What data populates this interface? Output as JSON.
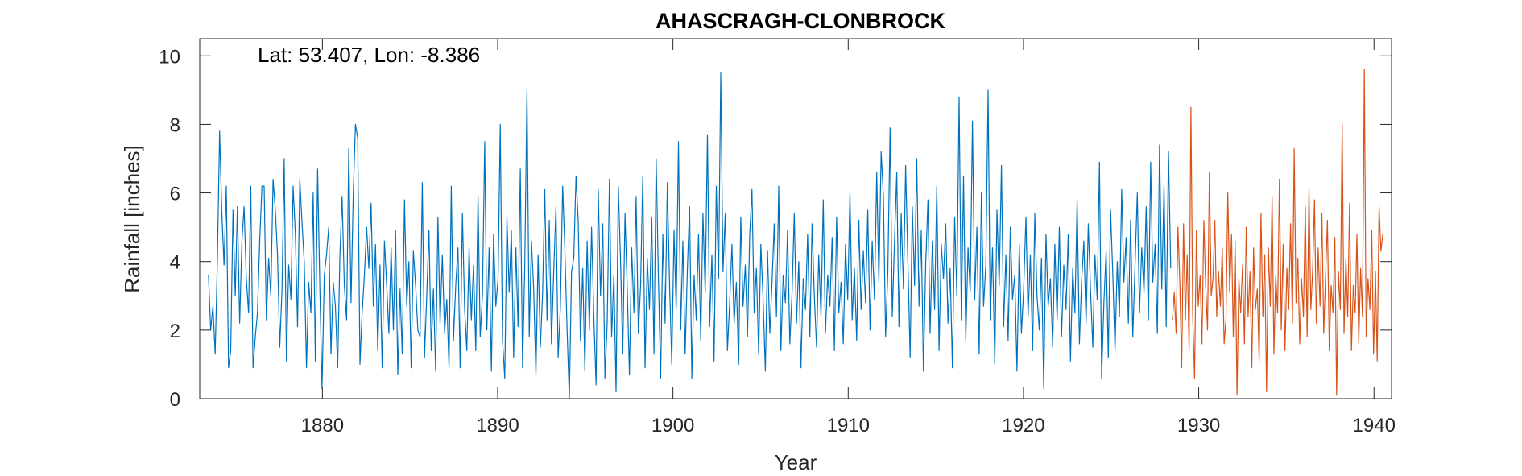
{
  "chart_data": {
    "type": "line",
    "title": "AHASCRAGH-CLONBROCK",
    "annotation": "Lat: 53.407, Lon: -8.386",
    "xlabel": "Year",
    "ylabel": "Rainfall [inches]",
    "xlim": [
      1873,
      1941
    ],
    "ylim": [
      0,
      10.5
    ],
    "xticks": [
      1880,
      1890,
      1900,
      1910,
      1920,
      1930,
      1940
    ],
    "yticks": [
      0,
      2,
      4,
      6,
      8,
      10
    ],
    "grid": false,
    "series": [
      {
        "color": "#0072BD",
        "sampling": "monthly",
        "x_start": 1873.5,
        "x_end": 1928.4,
        "values": [
          3.6,
          2.0,
          2.7,
          1.3,
          4.0,
          7.8,
          5.4,
          3.9,
          6.2,
          0.9,
          1.4,
          5.5,
          3.0,
          5.6,
          2.2,
          4.6,
          5.6,
          3.5,
          2.5,
          6.2,
          0.9,
          1.8,
          2.5,
          4.6,
          6.2,
          6.2,
          2.3,
          4.1,
          3.0,
          6.4,
          5.5,
          4.2,
          1.5,
          3.2,
          7.0,
          1.1,
          3.9,
          2.9,
          6.2,
          4.8,
          2.1,
          6.4,
          5.1,
          4.0,
          0.9,
          3.4,
          2.5,
          6.0,
          1.1,
          6.7,
          3.2,
          0.3,
          3.6,
          4.2,
          5.0,
          1.3,
          3.4,
          2.7,
          0.9,
          4.2,
          5.9,
          3.3,
          2.3,
          7.3,
          2.8,
          6.0,
          8.0,
          7.6,
          1.0,
          2.5,
          3.6,
          5.0,
          3.8,
          5.7,
          2.7,
          4.5,
          1.4,
          3.9,
          0.9,
          4.6,
          3.3,
          1.9,
          4.4,
          2.0,
          4.9,
          0.7,
          3.2,
          1.3,
          5.8,
          2.7,
          4.0,
          0.9,
          4.3,
          3.3,
          2.0,
          1.8,
          6.3,
          1.2,
          3.0,
          4.9,
          1.4,
          3.2,
          0.8,
          5.3,
          2.2,
          4.2,
          1.9,
          2.9,
          0.9,
          6.2,
          1.7,
          3.3,
          4.4,
          0.9,
          5.4,
          2.6,
          1.4,
          4.4,
          2.3,
          3.9,
          1.4,
          5.9,
          1.8,
          3.0,
          7.5,
          2.0,
          4.4,
          0.8,
          4.8,
          2.7,
          3.5,
          8.0,
          1.7,
          0.6,
          5.3,
          3.1,
          4.9,
          1.2,
          4.4,
          2.1,
          6.7,
          0.9,
          3.8,
          9.0,
          1.8,
          4.6,
          3.2,
          0.7,
          4.2,
          1.5,
          3.1,
          6.1,
          2.3,
          5.2,
          1.6,
          3.7,
          5.6,
          1.2,
          2.7,
          6.2,
          4.4,
          2.0,
          0.0,
          3.7,
          4.1,
          6.5,
          5.2,
          1.7,
          3.8,
          0.8,
          4.6,
          2.0,
          5.0,
          2.4,
          0.4,
          6.1,
          3.0,
          5.1,
          0.6,
          2.2,
          6.4,
          1.8,
          3.6,
          0.2,
          6.2,
          4.0,
          1.3,
          5.4,
          3.2,
          0.7,
          4.4,
          2.5,
          5.9,
          1.9,
          3.3,
          6.5,
          0.9,
          4.1,
          2.6,
          5.3,
          1.3,
          7.0,
          3.5,
          0.6,
          4.8,
          2.2,
          6.3,
          3.4,
          1.0,
          4.9,
          2.6,
          7.5,
          2.0,
          4.6,
          1.3,
          3.8,
          5.6,
          0.6,
          3.6,
          2.3,
          4.8,
          1.7,
          5.4,
          3.1,
          7.7,
          2.1,
          4.2,
          1.1,
          6.2,
          3.5,
          9.5,
          3.7,
          5.4,
          1.4,
          2.8,
          4.5,
          2.2,
          3.4,
          1.0,
          5.3,
          2.7,
          3.9,
          1.8,
          4.8,
          6.1,
          2.5,
          3.8,
          1.3,
          4.5,
          2.9,
          0.8,
          4.3,
          1.9,
          3.4,
          5.1,
          2.4,
          6.2,
          1.4,
          3.6,
          2.8,
          4.9,
          1.6,
          3.1,
          5.4,
          2.2,
          4.0,
          0.9,
          3.5,
          2.6,
          4.8,
          1.8,
          5.1,
          3.0,
          1.5,
          4.2,
          2.4,
          5.8,
          1.9,
          3.6,
          2.7,
          4.7,
          1.4,
          5.3,
          2.5,
          3.4,
          1.6,
          4.5,
          2.9,
          6.0,
          2.3,
          3.8,
          1.7,
          5.2,
          2.6,
          4.3,
          2.8,
          5.5,
          2.0,
          4.6,
          2.9,
          6.6,
          3.4,
          7.2,
          5.9,
          1.8,
          3.7,
          7.9,
          2.4,
          4.6,
          6.6,
          2.1,
          5.4,
          3.2,
          6.8,
          4.0,
          1.2,
          5.6,
          3.3,
          7.0,
          2.7,
          4.9,
          0.8,
          3.9,
          5.8,
          1.9,
          4.6,
          2.6,
          6.2,
          1.4,
          4.5,
          3.5,
          5.1,
          2.2,
          3.8,
          0.9,
          5.3,
          3.0,
          8.8,
          2.3,
          6.5,
          1.7,
          4.4,
          3.1,
          8.1,
          2.9,
          5.0,
          1.3,
          6.0,
          2.7,
          3.9,
          9.0,
          2.3,
          4.4,
          1.0,
          5.5,
          3.3,
          6.8,
          2.1,
          4.2,
          1.7,
          5.0,
          2.9,
          3.6,
          0.8,
          4.5,
          1.9,
          3.2,
          5.3,
          2.4,
          4.2,
          1.4,
          5.4,
          3.0,
          2.0,
          4.1,
          0.3,
          4.8,
          2.7,
          3.5,
          1.5,
          4.5,
          2.3,
          5.0,
          1.8,
          3.9,
          2.6,
          4.8,
          1.1,
          3.8,
          2.5,
          5.8,
          1.6,
          3.4,
          4.6,
          2.2,
          5.1,
          3.2,
          1.5,
          4.2,
          2.9,
          6.9,
          0.6,
          2.8,
          4.3,
          1.2,
          5.5,
          3.6,
          1.4,
          4.0,
          2.4,
          6.1,
          3.4,
          4.7,
          2.2,
          5.2,
          1.8,
          3.9,
          6.0,
          2.5,
          4.4,
          3.1,
          5.6,
          2.3,
          6.9,
          3.4,
          4.5,
          1.9,
          7.4,
          3.2,
          6.2,
          2.1,
          7.2,
          3.8
        ]
      },
      {
        "color": "#D95319",
        "sampling": "monthly",
        "x_start": 1928.5,
        "x_end": 1940.5,
        "values": [
          2.3,
          3.1,
          1.9,
          5.0,
          3.4,
          0.9,
          5.1,
          2.3,
          4.2,
          1.4,
          8.5,
          2.4,
          0.6,
          4.9,
          2.7,
          3.6,
          1.6,
          5.2,
          3.3,
          2.0,
          6.6,
          3.0,
          3.5,
          5.2,
          2.4,
          3.7,
          2.7,
          4.4,
          1.6,
          2.3,
          6.0,
          3.1,
          4.8,
          1.8,
          4.6,
          0.1,
          3.5,
          2.5,
          3.9,
          1.6,
          5.0,
          2.4,
          3.7,
          0.9,
          4.4,
          2.6,
          3.2,
          1.1,
          5.4,
          2.4,
          4.2,
          0.2,
          4.4,
          2.7,
          5.9,
          1.3,
          3.6,
          2.5,
          6.4,
          2.0,
          4.5,
          1.4,
          3.8,
          2.6,
          5.1,
          2.2,
          7.3,
          2.8,
          4.1,
          1.6,
          3.5,
          2.4,
          5.6,
          1.8,
          6.1,
          2.6,
          3.8,
          5.8,
          2.2,
          4.4,
          2.7,
          5.4,
          1.9,
          3.6,
          5.2,
          1.4,
          3.3,
          2.5,
          4.7,
          0.1,
          3.7,
          2.6,
          8.0,
          1.9,
          4.1,
          2.4,
          5.7,
          1.4,
          3.3,
          2.5,
          4.8,
          1.6,
          3.8,
          2.4,
          9.6,
          1.8,
          3.5,
          2.6,
          4.9,
          1.3,
          3.7,
          1.1,
          5.6,
          4.3,
          4.8
        ]
      }
    ]
  }
}
